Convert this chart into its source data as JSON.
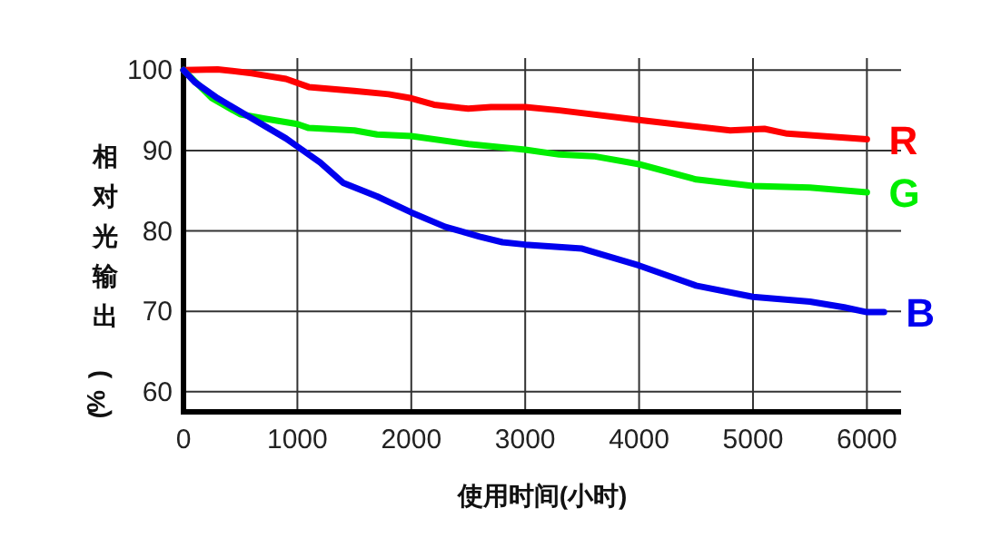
{
  "chart_data": {
    "type": "line",
    "xlabel": "使用时间(小时)",
    "ylabel": "相对光输出 (%)",
    "xlim": [
      0,
      6300
    ],
    "ylim": [
      57.5,
      101.5
    ],
    "xticks": [
      0,
      1000,
      2000,
      3000,
      4000,
      5000,
      6000
    ],
    "yticks": [
      60,
      70,
      80,
      90,
      100
    ],
    "grid": true,
    "series": [
      {
        "name": "R",
        "color": "#ff0000",
        "x": [
          0,
          300,
          600,
          900,
          1100,
          1500,
          1800,
          2000,
          2200,
          2500,
          2700,
          3000,
          3300,
          4000,
          4800,
          5100,
          5300,
          6000
        ],
        "values": [
          100,
          100.1,
          99.6,
          98.9,
          97.9,
          97.4,
          97.0,
          96.5,
          95.7,
          95.2,
          95.4,
          95.4,
          95.0,
          93.8,
          92.5,
          92.7,
          92.1,
          91.4
        ]
      },
      {
        "name": "G",
        "color": "#00ee00",
        "x": [
          0,
          250,
          500,
          700,
          1000,
          1100,
          1500,
          1700,
          2000,
          2500,
          3000,
          3300,
          3600,
          4000,
          4500,
          5000,
          5500,
          6000
        ],
        "values": [
          100,
          96.5,
          94.5,
          94.0,
          93.3,
          92.8,
          92.5,
          92.0,
          91.8,
          90.8,
          90.1,
          89.5,
          89.3,
          88.3,
          86.4,
          85.6,
          85.4,
          84.8
        ]
      },
      {
        "name": "B",
        "color": "#0000ee",
        "x": [
          0,
          100,
          300,
          600,
          900,
          1000,
          1200,
          1400,
          1700,
          2000,
          2300,
          2600,
          2800,
          3000,
          3500,
          4000,
          4500,
          5000,
          5500,
          5800,
          6000,
          6150
        ],
        "values": [
          100,
          98.5,
          96.5,
          94,
          91.5,
          90.5,
          88.5,
          86,
          84.3,
          82.3,
          80.5,
          79.3,
          78.6,
          78.3,
          77.8,
          75.7,
          73.2,
          71.8,
          71.2,
          70.5,
          69.9,
          69.9
        ]
      }
    ]
  }
}
